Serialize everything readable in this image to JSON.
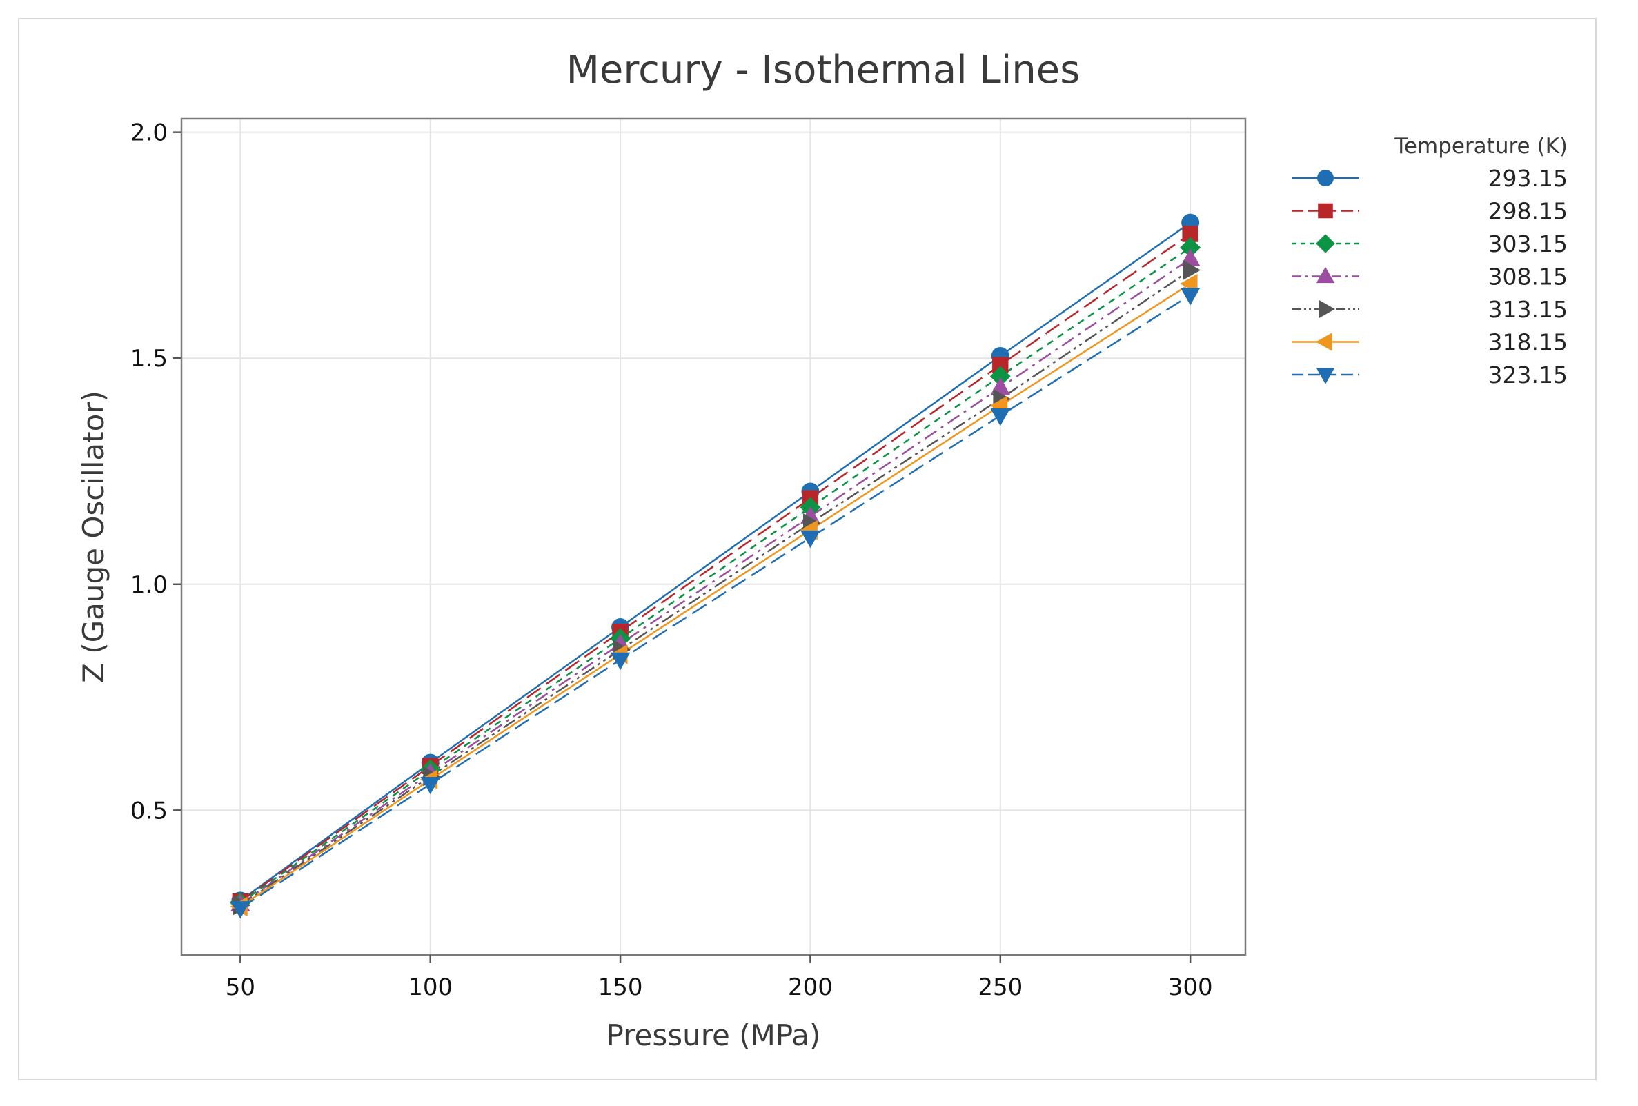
{
  "chart_data": {
    "type": "line",
    "title": "Mercury - Isothermal Lines",
    "xlabel": "Pressure (MPa)",
    "ylabel": "Z (Gauge Oscillator)",
    "xlim": [
      34.5,
      314.5
    ],
    "ylim": [
      0.18,
      2.03
    ],
    "xticks": [
      50,
      100,
      150,
      200,
      250,
      300
    ],
    "xtick_labels": [
      "50",
      "100",
      "150",
      "200",
      "250",
      "300"
    ],
    "yticks": [
      0.5,
      1.0,
      1.5,
      2.0
    ],
    "ytick_labels": [
      "0.5",
      "1.0",
      "1.5",
      "2.0"
    ],
    "grid": true,
    "legend": {
      "title": "Temperature (K)",
      "position": "right-outside"
    },
    "x": [
      50,
      100,
      150,
      200,
      250,
      300
    ],
    "series": [
      {
        "name": "293.15",
        "values": [
          0.3,
          0.605,
          0.905,
          1.205,
          1.505,
          1.8
        ],
        "color": "#1f6eb4",
        "marker": "circle",
        "dash": "solid"
      },
      {
        "name": "298.15",
        "values": [
          0.298,
          0.598,
          0.895,
          1.19,
          1.485,
          1.775
        ],
        "color": "#b8262a",
        "marker": "square",
        "dash": "longdash"
      },
      {
        "name": "303.15",
        "values": [
          0.295,
          0.59,
          0.88,
          1.17,
          1.46,
          1.745
        ],
        "color": "#0a9444",
        "marker": "diamond",
        "dash": "dash"
      },
      {
        "name": "308.15",
        "values": [
          0.292,
          0.582,
          0.868,
          1.15,
          1.435,
          1.72
        ],
        "color": "#9b4ea0",
        "marker": "triangle-up",
        "dash": "dashdot"
      },
      {
        "name": "313.15",
        "values": [
          0.29,
          0.575,
          0.855,
          1.135,
          1.41,
          1.695
        ],
        "color": "#555555",
        "marker": "triangle-right",
        "dash": "dashdotdot"
      },
      {
        "name": "318.15",
        "values": [
          0.287,
          0.568,
          0.845,
          1.12,
          1.395,
          1.665
        ],
        "color": "#f0951e",
        "marker": "triangle-left",
        "dash": "solid"
      },
      {
        "name": "323.15",
        "values": [
          0.283,
          0.558,
          0.833,
          1.103,
          1.373,
          1.64
        ],
        "color": "#1f6eb4",
        "marker": "triangle-down",
        "dash": "longdash"
      }
    ]
  }
}
